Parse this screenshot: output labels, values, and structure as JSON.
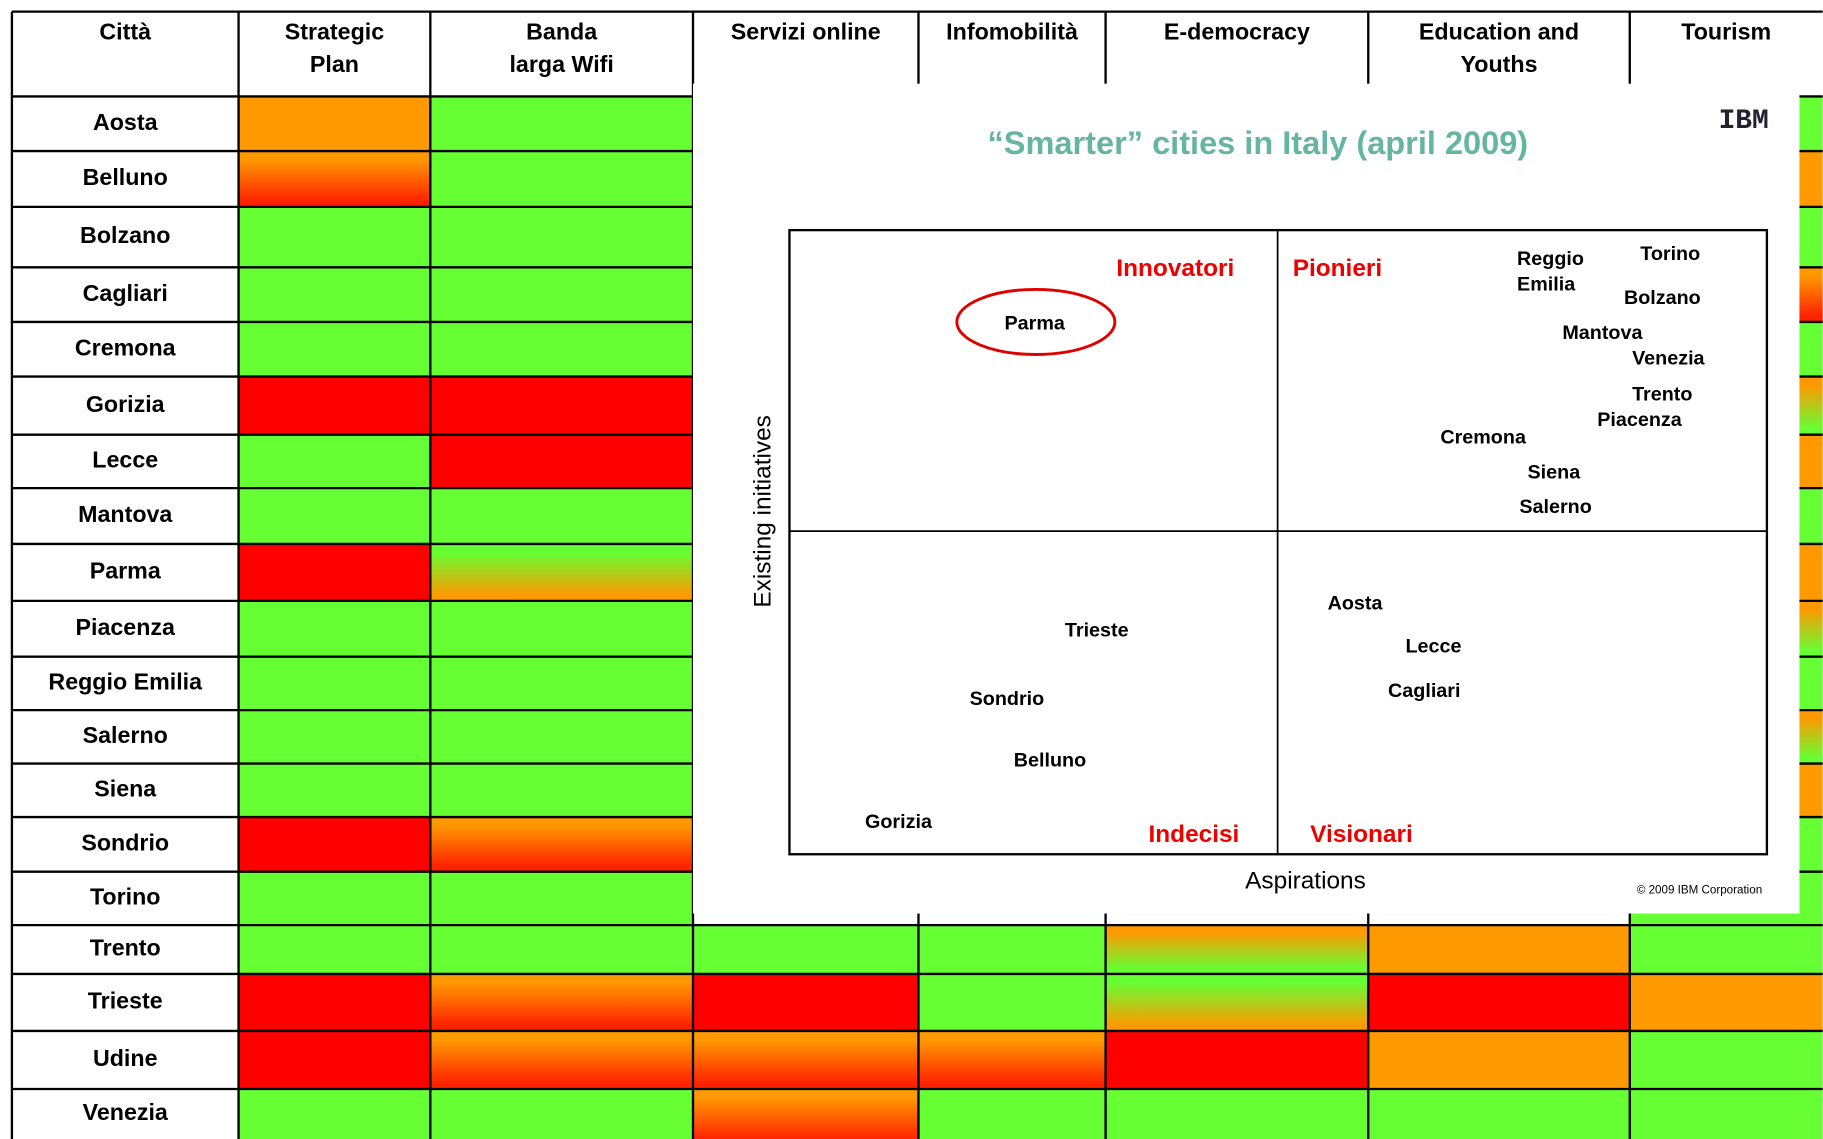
{
  "table": {
    "header": [
      "Città",
      "Strategic Plan",
      "Banda larga Wifi",
      "Servizi online",
      "Infomobilità",
      "E-democracy",
      "Education and Youths",
      "Tourism"
    ],
    "rows": [
      {
        "city": "Aosta",
        "cells": [
          "#ff9900",
          "#66ff33",
          null,
          null,
          null,
          null,
          "#66ff33"
        ]
      },
      {
        "city": "Belluno",
        "cells": [
          [
            "#ff9900",
            "#ff2200"
          ],
          "#66ff33",
          null,
          null,
          null,
          null,
          "#ff9900"
        ]
      },
      {
        "city": "Bolzano",
        "cells": [
          "#66ff33",
          "#66ff33",
          null,
          null,
          null,
          null,
          "#66ff33"
        ]
      },
      {
        "city": "Cagliari",
        "cells": [
          "#66ff33",
          "#66ff33",
          null,
          null,
          null,
          null,
          [
            "#ff9900",
            "#ff2200"
          ]
        ]
      },
      {
        "city": "Cremona",
        "cells": [
          "#66ff33",
          "#66ff33",
          null,
          null,
          null,
          null,
          "#66ff33"
        ]
      },
      {
        "city": "Gorizia",
        "cells": [
          "#ff0000",
          "#ff0000",
          null,
          null,
          null,
          null,
          [
            "#ff9900",
            "#66ff33"
          ]
        ]
      },
      {
        "city": "Lecce",
        "cells": [
          "#66ff33",
          "#ff0000",
          null,
          null,
          null,
          null,
          "#ff9900"
        ]
      },
      {
        "city": "Mantova",
        "cells": [
          "#66ff33",
          "#66ff33",
          null,
          null,
          null,
          null,
          "#66ff33"
        ]
      },
      {
        "city": "Parma",
        "cells": [
          "#ff0000",
          [
            "#66ff33",
            "#ff9900"
          ],
          null,
          null,
          null,
          null,
          "#ff9900"
        ]
      },
      {
        "city": "Piacenza",
        "cells": [
          "#66ff33",
          "#66ff33",
          null,
          null,
          null,
          null,
          [
            "#ff9900",
            "#66ff33"
          ]
        ]
      },
      {
        "city": "Reggio Emilia",
        "cells": [
          "#66ff33",
          "#66ff33",
          null,
          null,
          null,
          null,
          "#66ff33"
        ]
      },
      {
        "city": "Salerno",
        "cells": [
          "#66ff33",
          "#66ff33",
          null,
          null,
          null,
          null,
          [
            "#ff9900",
            "#66ff33"
          ]
        ]
      },
      {
        "city": "Siena",
        "cells": [
          "#66ff33",
          "#66ff33",
          null,
          null,
          null,
          null,
          "#ff9900"
        ]
      },
      {
        "city": "Sondrio",
        "cells": [
          "#ff0000",
          [
            "#ff9900",
            "#ff2200"
          ],
          null,
          null,
          null,
          null,
          "#66ff33"
        ]
      },
      {
        "city": "Torino",
        "cells": [
          "#66ff33",
          "#66ff33",
          null,
          null,
          null,
          null,
          "#66ff33"
        ]
      },
      {
        "city": "Trento",
        "cells": [
          "#66ff33",
          "#66ff33",
          "#66ff33",
          "#66ff33",
          [
            "#ff9900",
            "#66ff33"
          ],
          "#ff9900",
          "#66ff33"
        ]
      },
      {
        "city": "Trieste",
        "cells": [
          "#ff0000",
          [
            "#ff9900",
            "#ff2200"
          ],
          "#ff0000",
          "#66ff33",
          [
            "#66ff33",
            "#ff9900"
          ],
          "#ff0000",
          "#ff9900"
        ]
      },
      {
        "city": "Udine",
        "cells": [
          "#ff0000",
          [
            "#ff9900",
            "#ff2200"
          ],
          [
            "#ff9900",
            "#ff2200"
          ],
          [
            "#ff9900",
            "#ff2200"
          ],
          "#ff0000",
          "#ff9900",
          "#66ff33"
        ]
      },
      {
        "city": "Venezia",
        "cells": [
          "#66ff33",
          "#66ff33",
          [
            "#ff9900",
            "#ff2200"
          ],
          "#66ff33",
          "#66ff33",
          "#66ff33",
          "#66ff33"
        ]
      }
    ]
  },
  "overlay": {
    "title": "“Smarter” cities in Italy (april 2009)",
    "logo": "IBM",
    "y_axis_label": "Existing initiatives",
    "x_axis_label": "Aspirations",
    "copyright": "© 2009 IBM Corporation",
    "quadrants": [
      "Innovatori",
      "Pionieri",
      "Indecisi",
      "Visionari"
    ],
    "cities": [
      "Torino",
      "Reggio Emilia",
      "Bolzano",
      "Mantova",
      "Venezia",
      "Trento",
      "Piacenza",
      "Cremona",
      "Siena",
      "Salerno",
      "Aosta",
      "Lecce",
      "Cagliari",
      "Trieste",
      "Sondrio",
      "Belluno",
      "Gorizia",
      "Parma"
    ]
  }
}
